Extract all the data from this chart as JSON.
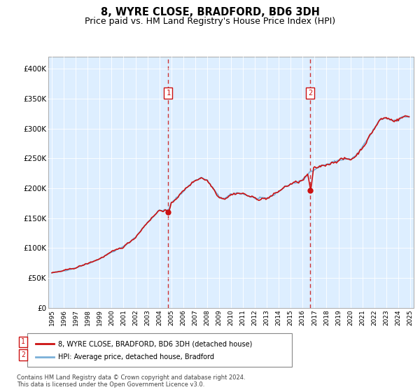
{
  "title": "8, WYRE CLOSE, BRADFORD, BD6 3DH",
  "subtitle": "Price paid vs. HM Land Registry's House Price Index (HPI)",
  "title_fontsize": 10.5,
  "subtitle_fontsize": 9,
  "background_color": "#ffffff",
  "plot_bg_color": "#ddeeff",
  "ylim": [
    0,
    420000
  ],
  "yticks": [
    0,
    50000,
    100000,
    150000,
    200000,
    250000,
    300000,
    350000,
    400000
  ],
  "ytick_labels": [
    "£0",
    "£50K",
    "£100K",
    "£150K",
    "£200K",
    "£250K",
    "£300K",
    "£350K",
    "£400K"
  ],
  "xlim_start": 1994.7,
  "xlim_end": 2025.3,
  "hpi_color": "#7ab0d8",
  "price_color": "#cc1111",
  "hpi_lw": 1.2,
  "price_lw": 1.2,
  "sale1_year": 2004.75,
  "sale1_price": 160000,
  "sale2_year": 2016.65,
  "sale2_price": 196000,
  "sale_marker_color": "#cc1111",
  "vline_color": "#cc3333",
  "legend_label_price": "8, WYRE CLOSE, BRADFORD, BD6 3DH (detached house)",
  "legend_label_hpi": "HPI: Average price, detached house, Bradford",
  "footer_text": "Contains HM Land Registry data © Crown copyright and database right 2024.\nThis data is licensed under the Open Government Licence v3.0."
}
